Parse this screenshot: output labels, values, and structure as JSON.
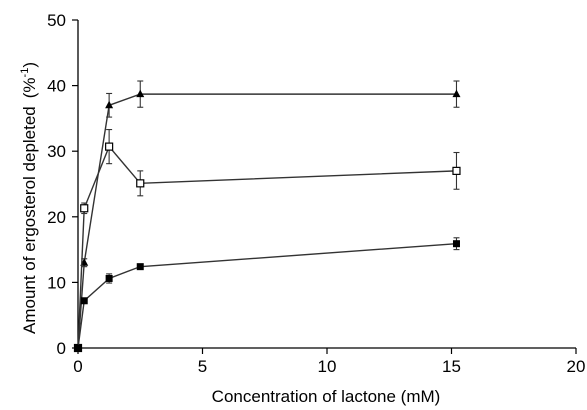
{
  "chart_data": {
    "type": "line",
    "xlabel": "Concentration of lactone (mM)",
    "ylabel": "Amount of ergosterol depleted",
    "ylabel_unit_base": "(%",
    "ylabel_unit_sup": "-1",
    "ylabel_unit_close": ")",
    "xlim": [
      0,
      20
    ],
    "ylim": [
      0,
      50
    ],
    "x_ticks": [
      0,
      5,
      10,
      15,
      20
    ],
    "y_ticks": [
      0,
      10,
      20,
      30,
      40,
      50
    ],
    "x_tick_labels": [
      "0",
      "5",
      "10",
      "15",
      "20"
    ],
    "y_tick_labels": [
      "0",
      "10",
      "20",
      "30",
      "40",
      "50"
    ],
    "grid": false,
    "series": [
      {
        "marker": "triangle-filled",
        "x": [
          0,
          0.25,
          1.25,
          2.5,
          15.2
        ],
        "y": [
          0,
          13,
          37,
          38.7,
          38.7
        ],
        "err": [
          0,
          0.6,
          1.8,
          2.0,
          2.0
        ]
      },
      {
        "marker": "square-open",
        "x": [
          0,
          0.25,
          1.25,
          2.5,
          15.2
        ],
        "y": [
          0,
          21.3,
          30.7,
          25.1,
          27.0
        ],
        "err": [
          0,
          0.8,
          2.6,
          1.9,
          2.8
        ]
      },
      {
        "marker": "square-filled",
        "x": [
          0,
          0.25,
          1.25,
          2.5,
          15.2
        ],
        "y": [
          0,
          7.2,
          10.6,
          12.4,
          15.9
        ],
        "err": [
          0,
          0.3,
          0.7,
          0.3,
          0.9
        ]
      }
    ]
  }
}
